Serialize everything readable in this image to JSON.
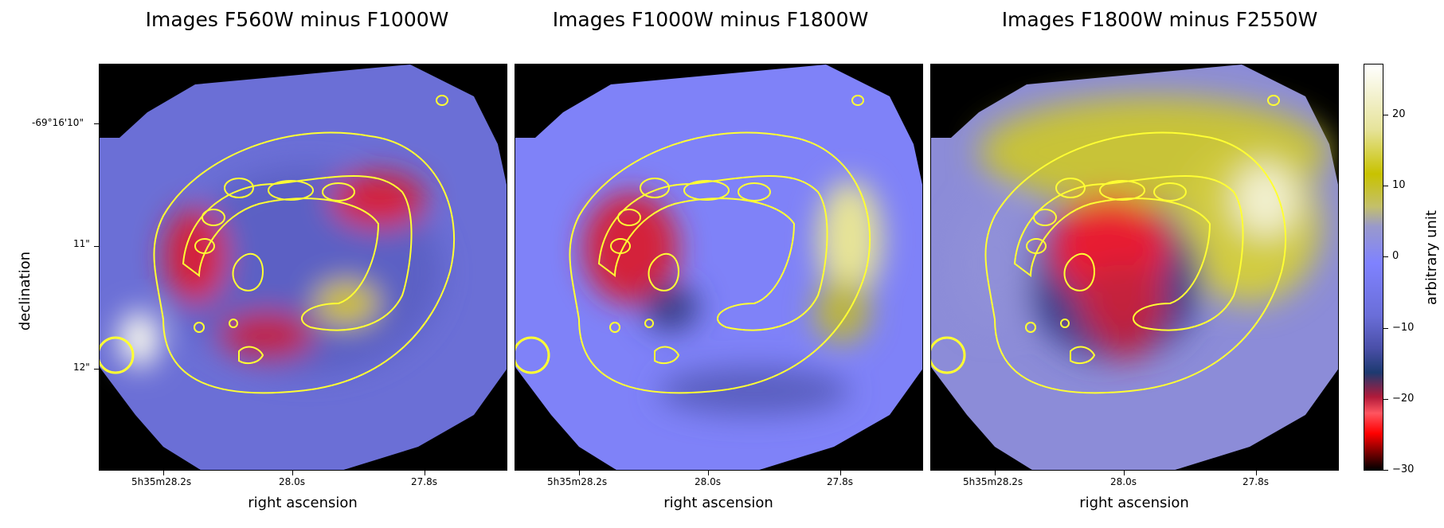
{
  "panels": [
    {
      "title": "Images F560W minus F1000W",
      "xlabel": "right ascension"
    },
    {
      "title": "Images F1000W minus F1800W",
      "xlabel": "right ascension"
    },
    {
      "title": "Images F1800W minus F2550W",
      "xlabel": "right ascension"
    }
  ],
  "xticks": [
    "5h35m28.2s",
    "28.0s",
    "27.8s"
  ],
  "yticks": [
    "-69°16'10\"",
    "11\"",
    "12\""
  ],
  "ylabel": "declination",
  "colorbar": {
    "label": "arbitrary unit",
    "ticks": [
      "20",
      "10",
      "0",
      "−10",
      "−20",
      "−30"
    ]
  },
  "contour_color": "#ffff33"
}
